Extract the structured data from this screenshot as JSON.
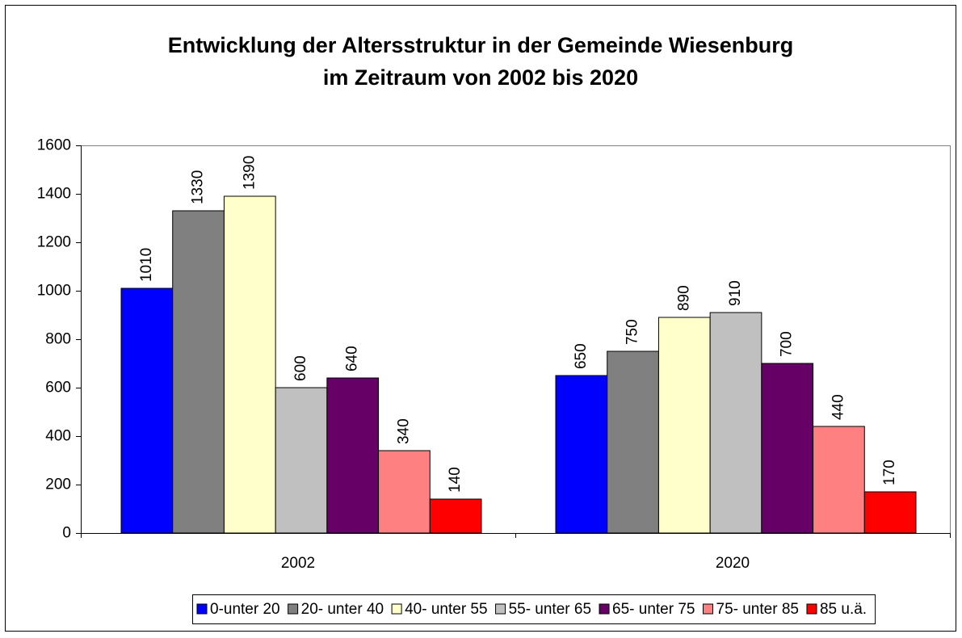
{
  "chart_data": {
    "type": "bar",
    "title": [
      "Entwicklung der Altersstruktur in der Gemeinde Wiesenburg",
      "im Zeitraum von 2002 bis 2020"
    ],
    "categories": [
      "2002",
      "2020"
    ],
    "series": [
      {
        "name": "0-unter 20",
        "color": "#0000ff",
        "values": [
          1010,
          650
        ]
      },
      {
        "name": "20- unter 40",
        "color": "#808080",
        "values": [
          1330,
          750
        ]
      },
      {
        "name": "40- unter 55",
        "color": "#ffffcc",
        "values": [
          1390,
          890
        ]
      },
      {
        "name": "55- unter 65",
        "color": "#c0c0c0",
        "values": [
          600,
          910
        ]
      },
      {
        "name": "65- unter 75",
        "color": "#660066",
        "values": [
          640,
          700
        ]
      },
      {
        "name": "75- unter 85",
        "color": "#ff8080",
        "values": [
          340,
          440
        ]
      },
      {
        "name": "85 u.ä.",
        "color": "#ff0000",
        "values": [
          140,
          170
        ]
      }
    ],
    "ylim": [
      0,
      1600
    ],
    "yticks": [
      0,
      200,
      400,
      600,
      800,
      1000,
      1200,
      1400,
      1600
    ],
    "grid": false,
    "legend": "bottom"
  }
}
